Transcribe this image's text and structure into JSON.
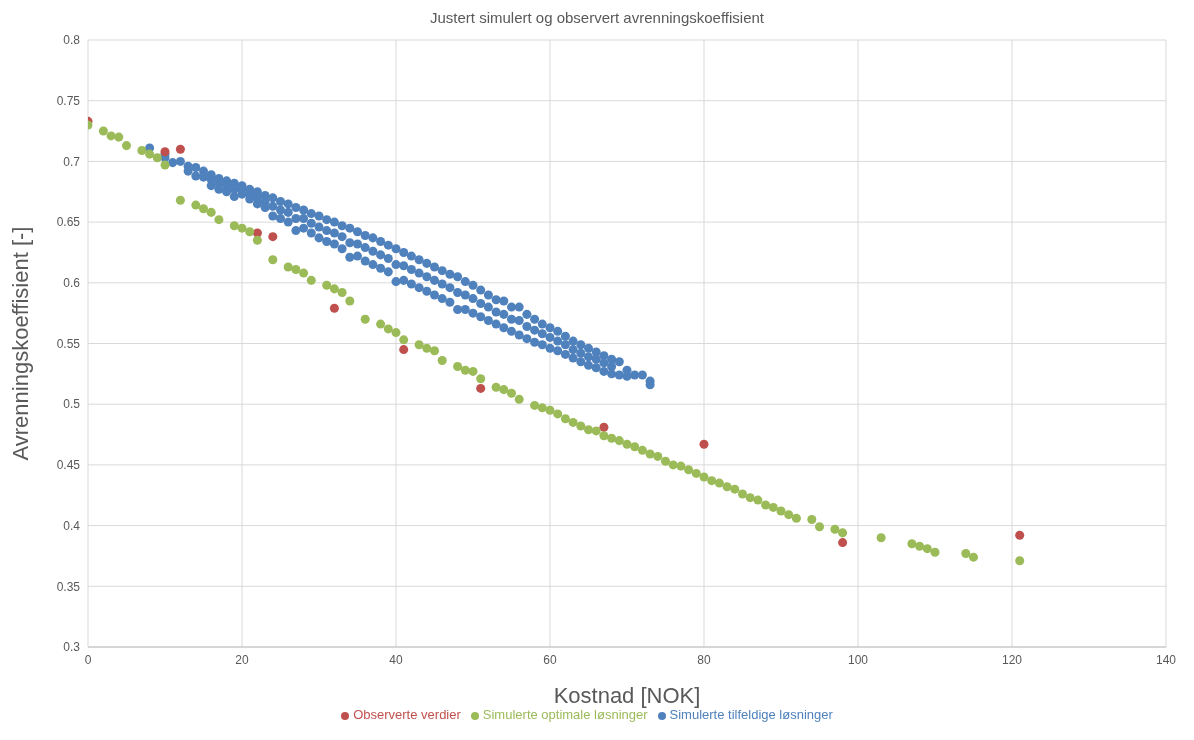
{
  "chart_data": {
    "type": "scatter",
    "title": "Justert simulert og observert avrenningskoeffisient",
    "xlabel": "Kostnad [NOK]",
    "ylabel": "Avrenningskoeffisient [-]",
    "xlim": [
      0,
      140
    ],
    "xticks": [
      0,
      20,
      40,
      60,
      80,
      100,
      120,
      140
    ],
    "ylim": [
      0.3,
      0.8
    ],
    "yticks": [
      0.3,
      0.35,
      0.4,
      0.45,
      0.5,
      0.55,
      0.6,
      0.65,
      0.7,
      0.75,
      0.8
    ],
    "grid": true,
    "legend": "bottom",
    "marker": "circle",
    "series": [
      {
        "name": "Simulerte tilfeldige løsninger",
        "color": "#4f81bd",
        "x": [
          8,
          10,
          10,
          11,
          12,
          13,
          13,
          14,
          14,
          15,
          15,
          16,
          16,
          16,
          17,
          17,
          17,
          18,
          18,
          18,
          19,
          19,
          19,
          20,
          20,
          20,
          21,
          21,
          21,
          22,
          22,
          22,
          23,
          23,
          23,
          24,
          24,
          24,
          25,
          25,
          25,
          26,
          26,
          26,
          27,
          27,
          27,
          28,
          28,
          28,
          29,
          29,
          29,
          30,
          30,
          30,
          31,
          31,
          31,
          32,
          32,
          32,
          33,
          33,
          33,
          34,
          34,
          34,
          35,
          35,
          35,
          36,
          36,
          36,
          37,
          37,
          37,
          38,
          38,
          38,
          39,
          39,
          39,
          40,
          40,
          40,
          41,
          41,
          41,
          42,
          42,
          42,
          43,
          43,
          43,
          44,
          44,
          44,
          45,
          45,
          45,
          46,
          46,
          46,
          47,
          47,
          47,
          48,
          48,
          48,
          49,
          49,
          49,
          50,
          50,
          50,
          51,
          51,
          51,
          52,
          52,
          52,
          53,
          53,
          53,
          54,
          54,
          54,
          55,
          55,
          55,
          56,
          56,
          56,
          57,
          57,
          57,
          58,
          58,
          58,
          59,
          59,
          59,
          60,
          60,
          60,
          61,
          61,
          61,
          62,
          62,
          62,
          63,
          63,
          63,
          64,
          64,
          64,
          65,
          65,
          65,
          66,
          66,
          66,
          67,
          67,
          67,
          68,
          68,
          68,
          69,
          69,
          70,
          70,
          71,
          72,
          73,
          73
        ],
        "values": [
          0.711,
          0.706,
          0.703,
          0.699,
          0.7,
          0.696,
          0.692,
          0.695,
          0.688,
          0.692,
          0.687,
          0.689,
          0.685,
          0.68,
          0.686,
          0.682,
          0.677,
          0.684,
          0.68,
          0.675,
          0.682,
          0.677,
          0.671,
          0.68,
          0.677,
          0.673,
          0.677,
          0.673,
          0.669,
          0.675,
          0.67,
          0.665,
          0.672,
          0.667,
          0.662,
          0.67,
          0.663,
          0.655,
          0.667,
          0.66,
          0.653,
          0.665,
          0.658,
          0.65,
          0.662,
          0.653,
          0.643,
          0.66,
          0.653,
          0.645,
          0.657,
          0.649,
          0.641,
          0.655,
          0.646,
          0.637,
          0.652,
          0.643,
          0.634,
          0.65,
          0.641,
          0.632,
          0.647,
          0.638,
          0.628,
          0.645,
          0.633,
          0.621,
          0.642,
          0.632,
          0.622,
          0.639,
          0.629,
          0.618,
          0.637,
          0.626,
          0.615,
          0.634,
          0.623,
          0.612,
          0.631,
          0.62,
          0.609,
          0.628,
          0.615,
          0.601,
          0.625,
          0.614,
          0.602,
          0.622,
          0.611,
          0.599,
          0.619,
          0.608,
          0.596,
          0.616,
          0.605,
          0.593,
          0.613,
          0.602,
          0.59,
          0.61,
          0.599,
          0.587,
          0.607,
          0.596,
          0.584,
          0.605,
          0.592,
          0.578,
          0.601,
          0.59,
          0.578,
          0.598,
          0.587,
          0.575,
          0.594,
          0.583,
          0.572,
          0.59,
          0.58,
          0.569,
          0.586,
          0.576,
          0.566,
          0.585,
          0.574,
          0.563,
          0.58,
          0.57,
          0.56,
          0.58,
          0.569,
          0.557,
          0.574,
          0.564,
          0.554,
          0.57,
          0.561,
          0.551,
          0.566,
          0.558,
          0.549,
          0.563,
          0.555,
          0.546,
          0.56,
          0.552,
          0.544,
          0.556,
          0.549,
          0.541,
          0.552,
          0.545,
          0.538,
          0.549,
          0.542,
          0.535,
          0.546,
          0.539,
          0.532,
          0.543,
          0.537,
          0.53,
          0.54,
          0.534,
          0.527,
          0.537,
          0.531,
          0.525,
          0.535,
          0.524,
          0.528,
          0.523,
          0.524,
          0.524,
          0.519,
          0.516
        ]
      },
      {
        "name": "Observerte verdier",
        "color": "#c0504d",
        "x": [
          0,
          10,
          12,
          22,
          24,
          32,
          41,
          51,
          67,
          80,
          98,
          121
        ],
        "values": [
          0.733,
          0.708,
          0.71,
          0.641,
          0.638,
          0.579,
          0.545,
          0.513,
          0.481,
          0.467,
          0.386,
          0.392
        ]
      },
      {
        "name": "Simulerte optimale løsninger",
        "color": "#9bbb59",
        "x": [
          0,
          2,
          3,
          4,
          5,
          7,
          8,
          9,
          10,
          12,
          14,
          15,
          16,
          17,
          19,
          20,
          21,
          22,
          24,
          26,
          27,
          28,
          29,
          31,
          32,
          33,
          34,
          36,
          38,
          39,
          40,
          41,
          43,
          44,
          45,
          46,
          48,
          49,
          50,
          51,
          53,
          54,
          55,
          56,
          58,
          59,
          60,
          61,
          62,
          63,
          64,
          65,
          66,
          67,
          68,
          69,
          70,
          71,
          72,
          73,
          74,
          75,
          76,
          77,
          78,
          79,
          80,
          81,
          82,
          83,
          84,
          85,
          86,
          87,
          88,
          89,
          90,
          91,
          92,
          94,
          95,
          97,
          98,
          103,
          107,
          108,
          109,
          110,
          114,
          115,
          121
        ],
        "values": [
          0.73,
          0.725,
          0.721,
          0.72,
          0.713,
          0.709,
          0.706,
          0.703,
          0.697,
          0.668,
          0.664,
          0.661,
          0.658,
          0.652,
          0.647,
          0.645,
          0.642,
          0.635,
          0.619,
          0.613,
          0.611,
          0.608,
          0.602,
          0.598,
          0.595,
          0.592,
          0.585,
          0.57,
          0.566,
          0.562,
          0.559,
          0.553,
          0.549,
          0.546,
          0.544,
          0.536,
          0.531,
          0.528,
          0.527,
          0.521,
          0.514,
          0.512,
          0.509,
          0.504,
          0.499,
          0.497,
          0.495,
          0.492,
          0.488,
          0.485,
          0.482,
          0.479,
          0.478,
          0.474,
          0.472,
          0.47,
          0.467,
          0.465,
          0.462,
          0.459,
          0.457,
          0.453,
          0.45,
          0.449,
          0.446,
          0.443,
          0.44,
          0.437,
          0.435,
          0.432,
          0.43,
          0.426,
          0.423,
          0.421,
          0.417,
          0.415,
          0.412,
          0.409,
          0.406,
          0.405,
          0.399,
          0.397,
          0.394,
          0.39,
          0.385,
          0.383,
          0.381,
          0.378,
          0.377,
          0.374,
          0.371
        ]
      }
    ]
  }
}
